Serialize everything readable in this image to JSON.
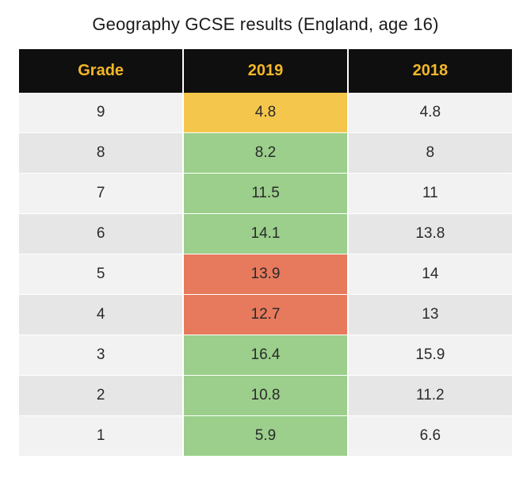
{
  "title": "Geography GCSE results (England, age 16)",
  "table": {
    "columns": [
      "Grade",
      "2019",
      "2018"
    ],
    "header_bg": "#0f0f0f",
    "header_fg": "#f4b728",
    "header_fontsize": 20,
    "header_fontweight": 700,
    "cell_fontsize": 19,
    "cell_fg": "#2a2a2a",
    "row_alt_bg_light": "#f2f2f2",
    "row_alt_bg_dark": "#e6e6e6",
    "highlight_colors": {
      "yellow": "#f4c64c",
      "green": "#9bcf8b",
      "red": "#e77a5d"
    },
    "rows": [
      {
        "grade": "9",
        "y2019": "4.8",
        "y2018": "4.8",
        "hl": "yellow",
        "alt": "light"
      },
      {
        "grade": "8",
        "y2019": "8.2",
        "y2018": "8",
        "hl": "green",
        "alt": "dark"
      },
      {
        "grade": "7",
        "y2019": "11.5",
        "y2018": "11",
        "hl": "green",
        "alt": "light"
      },
      {
        "grade": "6",
        "y2019": "14.1",
        "y2018": "13.8",
        "hl": "green",
        "alt": "dark"
      },
      {
        "grade": "5",
        "y2019": "13.9",
        "y2018": "14",
        "hl": "red",
        "alt": "light"
      },
      {
        "grade": "4",
        "y2019": "12.7",
        "y2018": "13",
        "hl": "red",
        "alt": "dark"
      },
      {
        "grade": "3",
        "y2019": "16.4",
        "y2018": "15.9",
        "hl": "green",
        "alt": "light"
      },
      {
        "grade": "2",
        "y2019": "10.8",
        "y2018": "11.2",
        "hl": "green",
        "alt": "dark"
      },
      {
        "grade": "1",
        "y2019": "5.9",
        "y2018": "6.6",
        "hl": "green",
        "alt": "light"
      }
    ]
  },
  "title_fontsize": 22,
  "title_color": "#1a1a1a",
  "background_color": "#ffffff"
}
